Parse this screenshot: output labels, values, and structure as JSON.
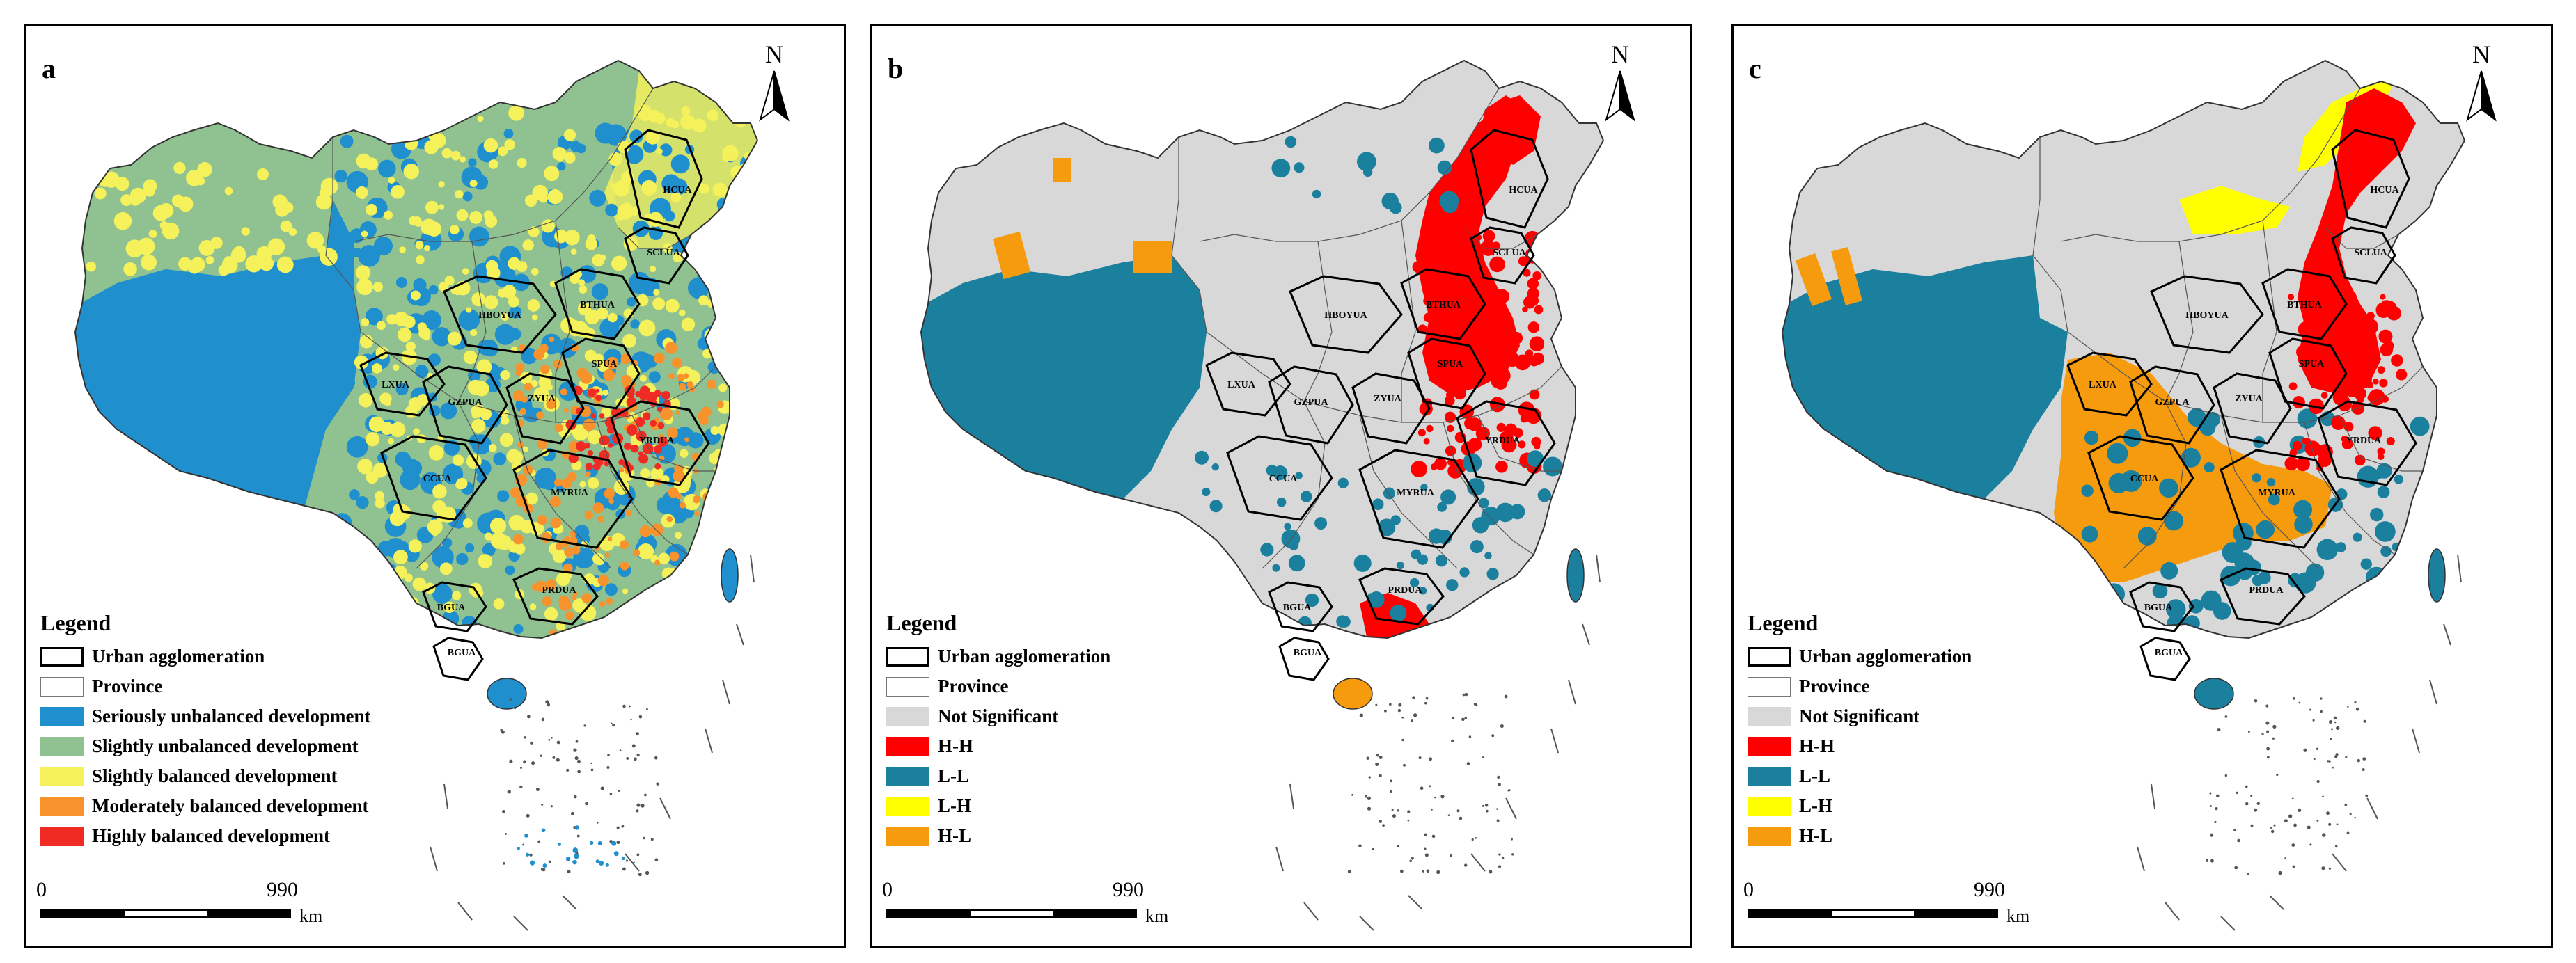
{
  "colors": {
    "seriously_unbalanced": "#1f8fce",
    "slightly_unbalanced": "#8fc290",
    "slightly_balanced": "#f4f15a",
    "moderately_balanced": "#f7922d",
    "highly_balanced": "#ef2b24",
    "not_significant": "#d8d8d8",
    "hh": "#ff0000",
    "ll": "#1b7f9e",
    "lh": "#ffff00",
    "hl": "#f79b0e"
  },
  "north_label": "N",
  "agglomeration_labels": [
    "HCUA",
    "SCLUA",
    "BTHUA",
    "HBOYUA",
    "SPUA",
    "LXUA",
    "GZPUA",
    "ZYUA",
    "YRDUA",
    "CCUA",
    "MYRUA",
    "BGUA",
    "PRDUA",
    "BGUA2"
  ],
  "ua_label_text": {
    "HCUA": "HCUA",
    "SCLUA": "SCLUA",
    "BTHUA": "BTHUA",
    "HBOYUA": "HBOYUA",
    "SPUA": "SPUA",
    "LXUA": "LXUA",
    "GZPUA": "GZPUA",
    "ZYUA": "ZYUA",
    "YRDUA": "YRDUA",
    "CCUA": "CCUA",
    "MYRUA": "MYRUA",
    "BGUA": "BGUA",
    "PRDUA": "PRDUA",
    "BGUA2": "BGUA"
  },
  "panels": [
    {
      "letter": "a",
      "legend_title": "Legend",
      "legend": [
        {
          "label": "Urban agglomeration",
          "color": "#ffffff",
          "outline": "bold"
        },
        {
          "label": "Province",
          "color": "#ffffff",
          "outline": "thin"
        },
        {
          "label": "Seriously unbalanced development",
          "color": "#1f8fce"
        },
        {
          "label": "Slightly unbalanced development",
          "color": "#8fc290"
        },
        {
          "label": "Slightly balanced development",
          "color": "#f4f15a"
        },
        {
          "label": "Moderately balanced development",
          "color": "#f7922d"
        },
        {
          "label": "Highly balanced development",
          "color": "#ef2b24"
        }
      ],
      "scale": {
        "start": "0",
        "end": "990",
        "unit": "km"
      }
    },
    {
      "letter": "b",
      "legend_title": "Legend",
      "legend": [
        {
          "label": "Urban agglomeration",
          "color": "#ffffff",
          "outline": "bold"
        },
        {
          "label": "Province",
          "color": "#ffffff",
          "outline": "thin"
        },
        {
          "label": "Not Significant",
          "color": "#d8d8d8"
        },
        {
          "label": "H-H",
          "color": "#ff0000"
        },
        {
          "label": "L-L",
          "color": "#1b7f9e"
        },
        {
          "label": "L-H",
          "color": "#ffff00"
        },
        {
          "label": "H-L",
          "color": "#f79b0e"
        }
      ],
      "scale": {
        "start": "0",
        "end": "990",
        "unit": "km"
      }
    },
    {
      "letter": "c",
      "legend_title": "Legend",
      "legend": [
        {
          "label": "Urban agglomeration",
          "color": "#ffffff",
          "outline": "bold"
        },
        {
          "label": "Province",
          "color": "#ffffff",
          "outline": "thin"
        },
        {
          "label": "Not Significant",
          "color": "#d8d8d8"
        },
        {
          "label": "H-H",
          "color": "#ff0000"
        },
        {
          "label": "L-L",
          "color": "#1b7f9e"
        },
        {
          "label": "L-H",
          "color": "#ffff00"
        },
        {
          "label": "H-L",
          "color": "#f79b0e"
        }
      ],
      "scale": {
        "start": "0",
        "end": "990",
        "unit": "km"
      }
    }
  ]
}
